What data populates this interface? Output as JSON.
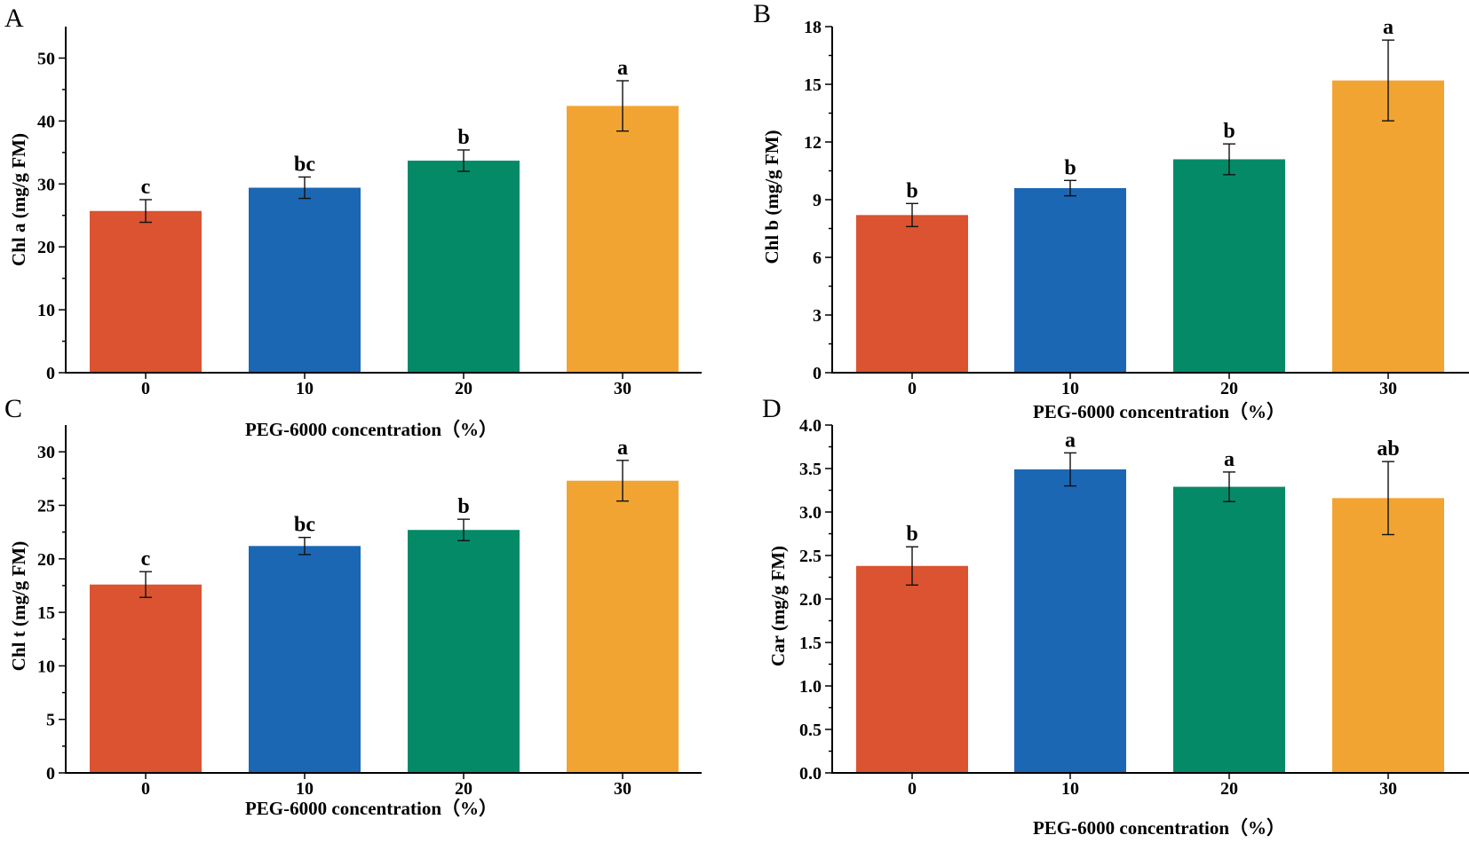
{
  "colors": {
    "c0": "#DB5330",
    "c10": "#1C67B3",
    "c20": "#058A68",
    "c30": "#F2A433"
  },
  "chart_data": [
    {
      "panel": "A",
      "type": "bar",
      "categories": [
        "0",
        "10",
        "20",
        "30"
      ],
      "values": [
        25.7,
        29.4,
        33.7,
        42.4
      ],
      "errors": [
        1.8,
        1.7,
        1.7,
        4.0
      ],
      "sig": [
        "c",
        "bc",
        "b",
        "a"
      ],
      "ylabel": "Chl a (mg/g FM)",
      "xlabel": "PEG-6000 concentration（%）",
      "ylim": [
        0,
        55
      ],
      "yticks": [
        "0",
        "10",
        "20",
        "30",
        "40",
        "50"
      ],
      "ytick_values": [
        0,
        10,
        20,
        30,
        40,
        50
      ]
    },
    {
      "panel": "B",
      "type": "bar",
      "categories": [
        "0",
        "10",
        "20",
        "30"
      ],
      "values": [
        8.2,
        9.6,
        11.1,
        15.2
      ],
      "errors": [
        0.6,
        0.4,
        0.8,
        2.1
      ],
      "sig": [
        "b",
        "b",
        "b",
        "a"
      ],
      "ylabel": "Chl b (mg/g FM)",
      "xlabel": "PEG-6000 concentration（%）",
      "ylim": [
        0,
        18
      ],
      "yticks": [
        "0",
        "3",
        "6",
        "9",
        "12",
        "15",
        "18"
      ],
      "ytick_values": [
        0,
        3,
        6,
        9,
        12,
        15,
        18
      ]
    },
    {
      "panel": "C",
      "type": "bar",
      "categories": [
        "0",
        "10",
        "20",
        "30"
      ],
      "values": [
        17.6,
        21.2,
        22.7,
        27.3
      ],
      "errors": [
        1.2,
        0.8,
        1.0,
        1.9
      ],
      "sig": [
        "c",
        "bc",
        "b",
        "a"
      ],
      "ylabel": "Chl t (mg/g FM)",
      "xlabel": "PEG-6000 concentration（%）",
      "ylim": [
        0,
        32.5
      ],
      "yticks": [
        "0",
        "5",
        "10",
        "15",
        "20",
        "25",
        "30"
      ],
      "ytick_values": [
        0,
        5,
        10,
        15,
        20,
        25,
        30
      ]
    },
    {
      "panel": "D",
      "type": "bar",
      "categories": [
        "0",
        "10",
        "20",
        "30"
      ],
      "values": [
        2.38,
        3.49,
        3.29,
        3.16
      ],
      "errors": [
        0.22,
        0.19,
        0.17,
        0.42
      ],
      "sig": [
        "b",
        "a",
        "a",
        "ab"
      ],
      "ylabel": "Car (mg/g FM)",
      "xlabel": "PEG-6000 concentration（%）",
      "ylim": [
        0,
        4.0
      ],
      "yticks": [
        "0.0",
        "0.5",
        "1.0",
        "1.5",
        "2.0",
        "2.5",
        "3.0",
        "3.5",
        "4.0"
      ],
      "ytick_values": [
        0,
        0.5,
        1.0,
        1.5,
        2.0,
        2.5,
        3.0,
        3.5,
        4.0
      ]
    }
  ]
}
